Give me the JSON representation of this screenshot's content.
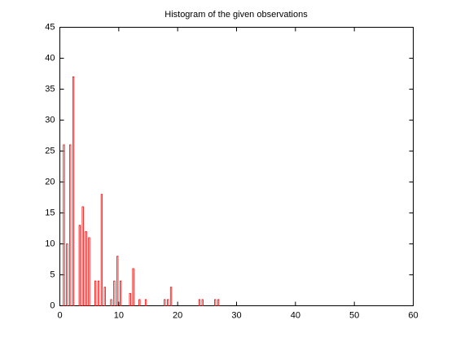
{
  "chart_data": {
    "type": "histogram",
    "title": "Histogram of the given observations",
    "bins": [
      0.42,
      0.955,
      1.49,
      2.025,
      2.56,
      3.095,
      3.63,
      4.165,
      4.7,
      5.235,
      5.77,
      6.305,
      6.84,
      7.375,
      7.91,
      8.445,
      8.98,
      9.515,
      10.05,
      10.585,
      11.12,
      11.655,
      12.19,
      12.725,
      13.26,
      13.795,
      14.33,
      14.865,
      15.4,
      15.935,
      16.47,
      17.005,
      17.54,
      18.075,
      18.61,
      19.145,
      19.68,
      20.215,
      20.75,
      21.285,
      21.82,
      22.355,
      22.89,
      23.425,
      23.96,
      24.495,
      25.03,
      25.565,
      26.1,
      26.635,
      27.17
    ],
    "values": [
      26,
      10,
      26,
      37,
      0,
      13,
      16,
      12,
      11,
      0,
      4,
      4,
      18,
      3,
      0,
      1,
      4,
      8,
      4,
      0,
      0,
      2,
      6,
      0,
      1,
      0,
      1,
      0,
      0,
      0,
      0,
      0,
      1,
      1,
      3,
      0,
      0,
      0,
      0,
      0,
      0,
      0,
      0,
      1,
      1,
      0,
      0,
      0,
      1,
      1
    ],
    "color": "#ff0000",
    "xlim": [
      0,
      60
    ],
    "xticks": [
      0,
      10,
      20,
      30,
      40,
      50,
      60
    ],
    "ylim": [
      0,
      45
    ],
    "yticks": [
      0,
      5,
      10,
      15,
      20,
      25,
      30,
      35,
      40,
      45
    ],
    "grid": false
  }
}
